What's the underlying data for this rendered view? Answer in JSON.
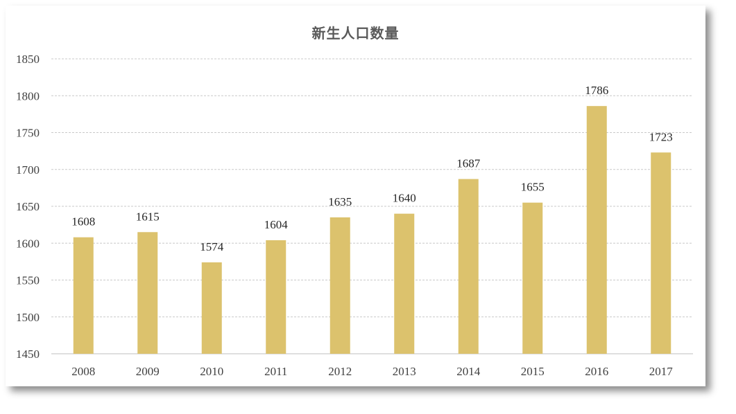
{
  "chart_data": {
    "type": "bar",
    "title": "新生人口数量",
    "xlabel": "",
    "ylabel": "",
    "categories": [
      "2008",
      "2009",
      "2010",
      "2011",
      "2012",
      "2013",
      "2014",
      "2015",
      "2016",
      "2017"
    ],
    "values": [
      1608,
      1615,
      1574,
      1604,
      1635,
      1640,
      1687,
      1655,
      1786,
      1723
    ],
    "ylim": [
      1450,
      1850
    ],
    "yticks": [
      1450,
      1500,
      1550,
      1600,
      1650,
      1700,
      1750,
      1800,
      1850
    ],
    "data_labels": true,
    "grid": true,
    "bar_color": "#dcc26d"
  }
}
